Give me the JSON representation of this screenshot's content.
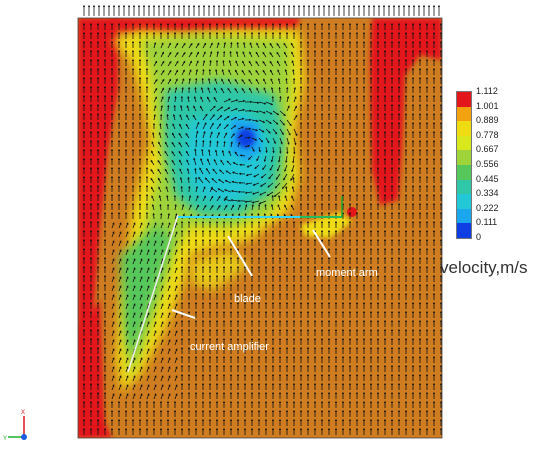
{
  "chart_data": {
    "type": "heatmap",
    "title": "",
    "colorbar": {
      "label": "velocity,m/s",
      "ticks": [
        "1.112",
        "1.001",
        "0.889",
        "0.778",
        "0.667",
        "0.556",
        "0.445",
        "0.334",
        "0.222",
        "0.111",
        "0"
      ],
      "min": 0,
      "max": 1.112,
      "colors": [
        "#e3171b",
        "#f2a20f",
        "#efdc12",
        "#d8e81c",
        "#9ed33a",
        "#56c75a",
        "#2fc7a7",
        "#22c8d6",
        "#1aa7ee",
        "#0f3fe2"
      ]
    },
    "annotations": [
      {
        "text": "moment arm"
      },
      {
        "text": "blade"
      },
      {
        "text": "current amplifier"
      }
    ],
    "axes_triad": {
      "x_label": "X",
      "y_label": "Y"
    },
    "background_color": "#cf7d20",
    "notes_colors": {
      "low_speed": "#2fc7a7",
      "high_speed": "#e3171b"
    }
  }
}
